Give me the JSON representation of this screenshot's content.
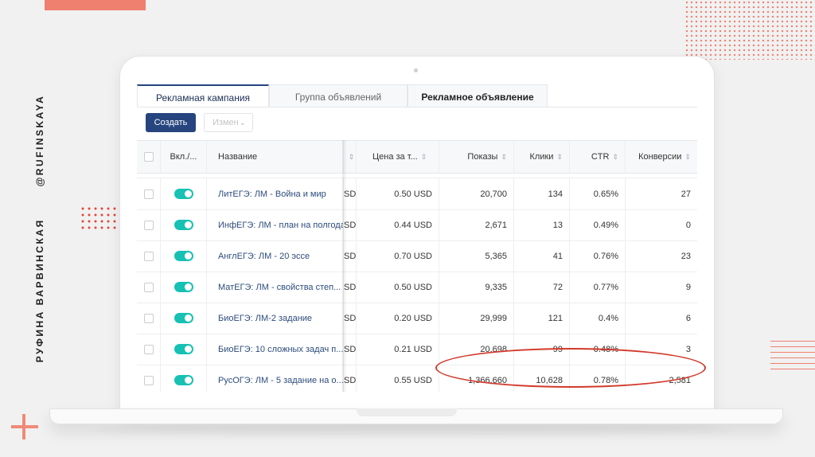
{
  "branding": {
    "author_name": "РУФИНА ВАРВИНСКАЯ",
    "handle": "@RUFINSKAYA"
  },
  "colors": {
    "accent": "#26457f",
    "toggle_on": "#17c1b4",
    "highlight": "#d23a2b",
    "deco": "#ef7f6e"
  },
  "tabs": [
    {
      "label": "Рекламная кампания",
      "active": true
    },
    {
      "label": "Группа объявлений",
      "active": false
    },
    {
      "label": "Рекламное объявление",
      "active": false
    }
  ],
  "toolbar": {
    "create_label": "Создать",
    "edit_label": "Измен",
    "edit_icon": "chevron-down-icon"
  },
  "table": {
    "headers": {
      "toggle": "Вкл./...",
      "name": "Название",
      "price": "Цена за т...",
      "impressions": "Показы",
      "clicks": "Клики",
      "ctr": "CTR",
      "conversions": "Конверсии"
    },
    "rows": [
      {
        "name": "ЛитЕГЭ: ЛМ - Война и мир",
        "cut": "SD",
        "price": "0.50 USD",
        "impressions": "20,700",
        "clicks": "134",
        "ctr": "0.65%",
        "conversions": "27"
      },
      {
        "name": "ИнфЕГЭ: ЛМ - план на полгода",
        "cut": "SD",
        "price": "0.44 USD",
        "impressions": "2,671",
        "clicks": "13",
        "ctr": "0.49%",
        "conversions": "0"
      },
      {
        "name": "АнглЕГЭ: ЛМ - 20 эссе",
        "cut": "SD",
        "price": "0.70 USD",
        "impressions": "5,365",
        "clicks": "41",
        "ctr": "0.76%",
        "conversions": "23"
      },
      {
        "name": "МатЕГЭ: ЛМ - свойства степ...",
        "cut": "SD",
        "price": "0.50 USD",
        "impressions": "9,335",
        "clicks": "72",
        "ctr": "0.77%",
        "conversions": "9"
      },
      {
        "name": "БиоЕГЭ: ЛМ-2 задание",
        "cut": "SD",
        "price": "0.20 USD",
        "impressions": "29,999",
        "clicks": "121",
        "ctr": "0.4%",
        "conversions": "6"
      },
      {
        "name": "БиоЕГЭ: 10 сложных задач п...",
        "cut": "SD",
        "price": "0.21 USD",
        "impressions": "20,698",
        "clicks": "99",
        "ctr": "0.48%",
        "conversions": "3"
      },
      {
        "name": "РусОГЭ: ЛМ - 5 задание на о...",
        "cut": "SD",
        "price": "0.55 USD",
        "impressions": "1,366,660",
        "clicks": "10,628",
        "ctr": "0.78%",
        "conversions": "2,581"
      }
    ]
  }
}
